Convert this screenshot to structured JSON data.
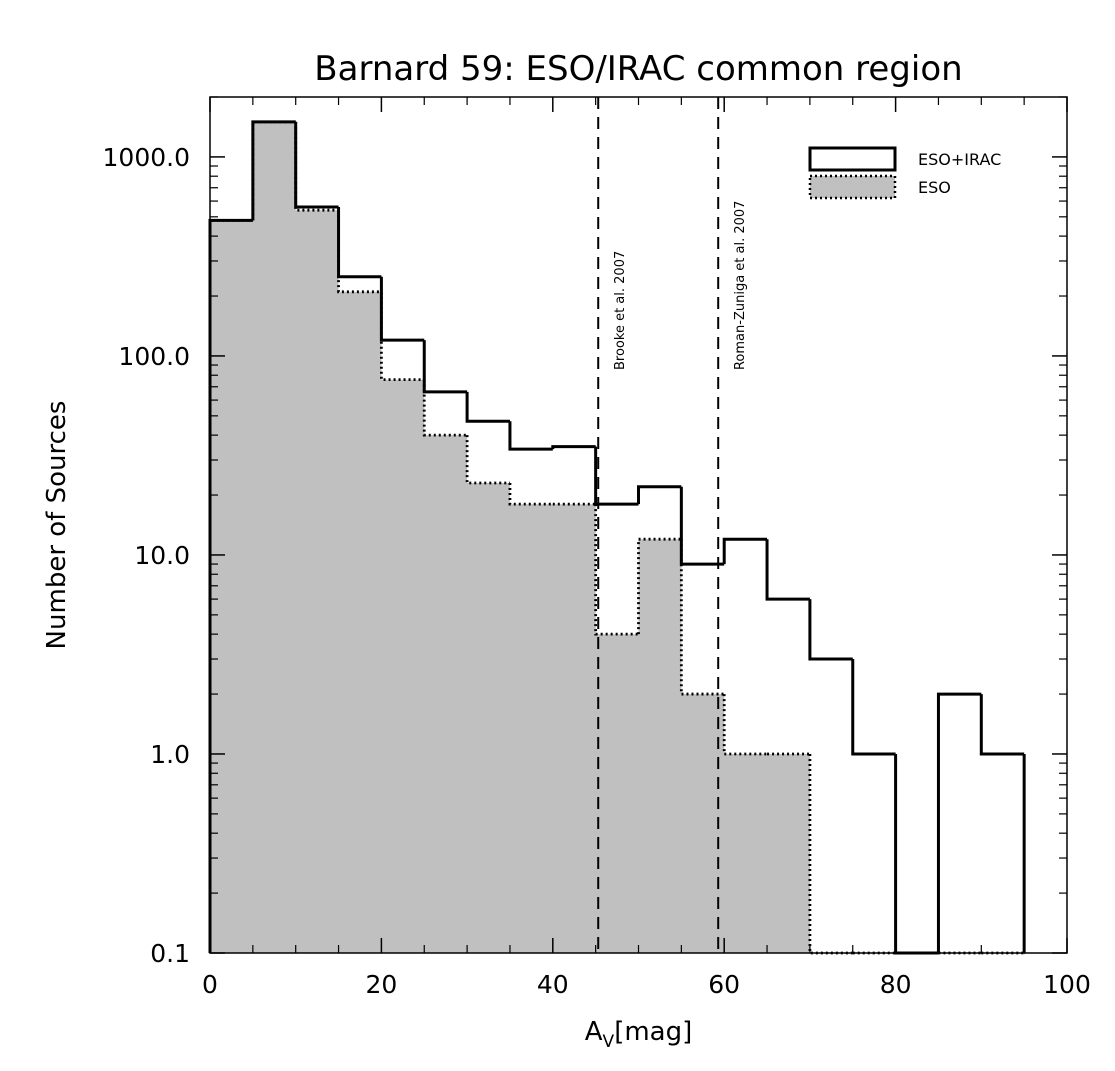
{
  "chart_data": {
    "type": "histogram",
    "title": "Barnard 59: ESO/IRAC common region",
    "xlabel": "A",
    "xlabel_sub": "V",
    "xlabel_unit": "[mag]",
    "ylabel": "Number of Sources",
    "xlim": [
      0,
      100
    ],
    "ylim": [
      0.1,
      2000
    ],
    "yscale": "log",
    "x_ticks": [
      0,
      20,
      40,
      60,
      80,
      100
    ],
    "x_tick_labels": [
      "0",
      "20",
      "40",
      "60",
      "80",
      "100"
    ],
    "y_ticks": [
      0.1,
      1,
      10,
      100,
      1000
    ],
    "y_tick_labels": [
      "0.1",
      "1.0",
      "10.0",
      "100.0",
      "1000.0"
    ],
    "bin_width": 5,
    "bin_starts": [
      0,
      5,
      10,
      15,
      20,
      25,
      30,
      35,
      40,
      45,
      50,
      55,
      60,
      65,
      70,
      75,
      80,
      85,
      90
    ],
    "series": [
      {
        "name": "ESO+IRAC",
        "style": "solid",
        "fill": "none",
        "values": [
          480,
          1500,
          560,
          250,
          120,
          66,
          47,
          34,
          35,
          18,
          22,
          9,
          12,
          6,
          3,
          1,
          0,
          2,
          1
        ]
      },
      {
        "name": "ESO",
        "style": "dotted",
        "fill": "#c0c0c0",
        "values": [
          480,
          1500,
          540,
          210,
          76,
          40,
          23,
          18,
          18,
          4,
          12,
          2,
          1,
          1,
          0,
          0,
          0,
          0,
          0
        ]
      }
    ],
    "annotations": [
      {
        "x": 45.3,
        "label": "Brooke et al. 2007",
        "style": "dashed"
      },
      {
        "x": 59.3,
        "label": "Roman-Zuniga et al. 2007",
        "style": "dashed"
      }
    ],
    "legend_position": "top-right",
    "colors": {
      "stroke": "#000000",
      "eso_fill": "#c0c0c0"
    }
  }
}
